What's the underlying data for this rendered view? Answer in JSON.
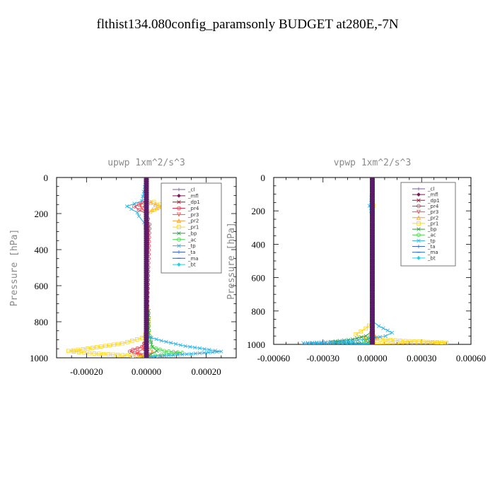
{
  "figure": {
    "title": "flthist134.080config_paramsonly  BUDGET at280E,-7N"
  },
  "chart_data": [
    {
      "type": "line",
      "title": "upwp   1xm^2/s^3",
      "ylabel": "Pressure  [hPa]",
      "xlabel": "",
      "xlim": [
        -0.0003,
        0.0003
      ],
      "ylim": [
        1000,
        0
      ],
      "xticks": [
        -0.0002,
        0.0,
        0.0002
      ],
      "xtick_labels": [
        "-0.00020",
        "0.00000",
        "0.00020"
      ],
      "yticks": [
        0,
        200,
        400,
        600,
        800,
        1000
      ],
      "ytick_labels": [
        "0",
        "200",
        "400",
        "600",
        "800",
        "1000"
      ],
      "legend_position": "top-right",
      "grid": false,
      "series": [
        {
          "name": "_cl",
          "color": "#7b5aa6",
          "marker": "+",
          "x": [
            0,
            0,
            0
          ],
          "y": [
            0,
            500,
            1000
          ]
        },
        {
          "name": "_mfl",
          "color": "#7b1a5a",
          "marker": "diamond",
          "x": [
            0,
            0,
            0
          ],
          "y": [
            0,
            500,
            1000
          ]
        },
        {
          "name": "_dp1",
          "color": "#a0142d",
          "marker": "x",
          "x": [
            0,
            0,
            0
          ],
          "y": [
            0,
            500,
            1000
          ]
        },
        {
          "name": "_pr4",
          "color": "#e2344a",
          "marker": "circle",
          "x": [
            0,
            0,
            -1e-05,
            -4e-05,
            -2.5e-05,
            0,
            1e-05,
            0,
            -1.5e-05,
            -4.5e-05,
            -5.5e-05,
            -4e-05,
            -1e-05,
            8e-06,
            0
          ],
          "y": [
            0,
            120,
            140,
            160,
            180,
            200,
            260,
            900,
            940,
            955,
            965,
            975,
            985,
            995,
            1000
          ]
        },
        {
          "name": "_pr3",
          "color": "#ff4a4a",
          "marker": "triangle-down",
          "x": [
            0,
            0,
            -2e-05,
            -1.5e-05,
            0,
            0,
            -1e-05,
            -3e-05,
            -2e-05,
            0
          ],
          "y": [
            0,
            130,
            150,
            170,
            200,
            900,
            950,
            970,
            985,
            1000
          ]
        },
        {
          "name": "_pr2",
          "color": "#ff9b2e",
          "marker": "triangle",
          "x": [
            0,
            0,
            3e-05,
            5e-05,
            2e-05,
            0,
            0,
            5e-06,
            2e-05,
            8e-06,
            0
          ],
          "y": [
            0,
            130,
            150,
            160,
            180,
            200,
            900,
            940,
            965,
            985,
            1000
          ]
        },
        {
          "name": "_pr1",
          "color": "#ffd21a",
          "marker": "square",
          "x": [
            0,
            0,
            2.5e-05,
            4.5e-05,
            4e-05,
            1.2e-05,
            0,
            0,
            8e-06,
            8e-06,
            -1.5e-05,
            -8e-05,
            -0.00018,
            -0.00026,
            -0.00019,
            -8e-05,
            -1.5e-05,
            0
          ],
          "y": [
            0,
            120,
            135,
            150,
            165,
            190,
            220,
            700,
            780,
            850,
            890,
            920,
            945,
            962,
            975,
            985,
            995,
            1000
          ]
        },
        {
          "name": "_bp",
          "color": "#2d9a3a",
          "marker": "x",
          "x": [
            0,
            0,
            8e-06,
            8e-06,
            2e-05,
            3.5e-05,
            1.5e-05,
            5e-06,
            0
          ],
          "y": [
            0,
            700,
            740,
            860,
            940,
            962,
            980,
            992,
            1000
          ]
        },
        {
          "name": "_ac",
          "color": "#46d246",
          "marker": "circle",
          "x": [
            0,
            0,
            8e-06,
            1.8e-05,
            6e-05,
            0.00012,
            5e-05,
            1e-05,
            0
          ],
          "y": [
            0,
            800,
            850,
            940,
            962,
            972,
            982,
            992,
            1000
          ]
        },
        {
          "name": "_tp",
          "color": "#2bb0e3",
          "marker": "x",
          "x": [
            0,
            -1.5e-05,
            -4e-05,
            -6.5e-05,
            -5e-05,
            -3e-05,
            -2.5e-05,
            -8e-06,
            0,
            0,
            5e-05,
            0.00013,
            0.00021,
            0.00025,
            0.00015,
            3e-05,
            0
          ],
          "y": [
            0,
            130,
            145,
            160,
            175,
            195,
            215,
            250,
            300,
            880,
            905,
            935,
            955,
            965,
            978,
            992,
            1000
          ]
        },
        {
          "name": "_ta",
          "color": "#3a5fd6",
          "marker": "+",
          "x": [
            0,
            0,
            -5e-06,
            0,
            0,
            5e-06,
            0
          ],
          "y": [
            0,
            140,
            160,
            190,
            900,
            960,
            1000
          ]
        },
        {
          "name": "_ma",
          "color": "#1a64b4",
          "marker": "dash",
          "x": [
            0,
            0,
            0
          ],
          "y": [
            0,
            500,
            1000
          ]
        },
        {
          "name": "_bt",
          "color": "#22d0e0",
          "marker": "diamond",
          "x": [
            0,
            0,
            0
          ],
          "y": [
            0,
            500,
            1000
          ]
        }
      ]
    },
    {
      "type": "line",
      "title": "vpwp   1xm^2/s^3",
      "ylabel": "Pressure  [hPa]",
      "xlabel": "",
      "xlim": [
        -0.0006,
        0.0006
      ],
      "ylim": [
        1000,
        0
      ],
      "xticks": [
        -0.0006,
        -0.0003,
        0.0,
        0.0003,
        0.0006
      ],
      "xtick_labels": [
        "-0.00060",
        "-0.00030",
        "0.00000",
        "0.00030",
        "0.00060"
      ],
      "yticks": [
        0,
        200,
        400,
        600,
        800,
        1000
      ],
      "ytick_labels": [
        "0",
        "200",
        "400",
        "600",
        "800",
        "1000"
      ],
      "legend_position": "top-right",
      "grid": false,
      "series": [
        {
          "name": "_cl",
          "color": "#7b5aa6",
          "marker": "+",
          "x": [
            0,
            0,
            0
          ],
          "y": [
            0,
            500,
            1000
          ]
        },
        {
          "name": "_mfl",
          "color": "#7b1a5a",
          "marker": "diamond",
          "x": [
            0,
            0,
            0
          ],
          "y": [
            0,
            500,
            1000
          ]
        },
        {
          "name": "_dp1",
          "color": "#a0142d",
          "marker": "x",
          "x": [
            0,
            0,
            0
          ],
          "y": [
            0,
            500,
            1000
          ]
        },
        {
          "name": "_pr4",
          "color": "#e2344a",
          "marker": "circle",
          "x": [
            0,
            0,
            -1e-05,
            -2.5e-05,
            -1e-05,
            0
          ],
          "y": [
            0,
            900,
            950,
            975,
            990,
            1000
          ]
        },
        {
          "name": "_pr3",
          "color": "#ff4a4a",
          "marker": "triangle-down",
          "x": [
            0,
            0,
            1e-05,
            0
          ],
          "y": [
            0,
            900,
            960,
            1000
          ]
        },
        {
          "name": "_pr2",
          "color": "#ff9b2e",
          "marker": "triangle",
          "x": [
            0,
            0,
            1e-05,
            3e-05,
            1e-05,
            0
          ],
          "y": [
            0,
            900,
            940,
            960,
            985,
            1000
          ]
        },
        {
          "name": "_pr1",
          "color": "#ffd21a",
          "marker": "square",
          "x": [
            0,
            0,
            8e-06,
            0,
            0,
            -4e-05,
            -0.0001,
            -6e-05,
            5e-05,
            0.0002,
            0.00045,
            0.0002,
            3e-05,
            0
          ],
          "y": [
            0,
            140,
            170,
            220,
            870,
            905,
            940,
            960,
            970,
            980,
            990,
            995,
            998,
            1000
          ]
        },
        {
          "name": "_bp",
          "color": "#2d9a3a",
          "marker": "x",
          "x": [
            0,
            0,
            -4e-05,
            -0.00012,
            -0.00025,
            -9e-05,
            -1e-05,
            0
          ],
          "y": [
            0,
            920,
            950,
            970,
            985,
            993,
            997,
            1000
          ]
        },
        {
          "name": "_ac",
          "color": "#46d246",
          "marker": "circle",
          "x": [
            0,
            0,
            -2e-05,
            -5e-05,
            -2e-05,
            0
          ],
          "y": [
            0,
            940,
            965,
            980,
            992,
            1000
          ]
        },
        {
          "name": "_tp",
          "color": "#2bb0e3",
          "marker": "x",
          "x": [
            0,
            -8e-06,
            -1.8e-05,
            -8e-06,
            0,
            0,
            4e-05,
            0.00012,
            8e-05,
            -2e-05,
            -0.00012,
            -0.00042,
            -0.0001,
            0
          ],
          "y": [
            0,
            150,
            170,
            200,
            230,
            860,
            890,
            930,
            950,
            965,
            980,
            992,
            997,
            1000
          ]
        },
        {
          "name": "_ta",
          "color": "#3a5fd6",
          "marker": "+",
          "x": [
            0,
            0,
            1e-05,
            0
          ],
          "y": [
            0,
            900,
            960,
            1000
          ]
        },
        {
          "name": "_ma",
          "color": "#1a64b4",
          "marker": "dash",
          "x": [
            0,
            0,
            0
          ],
          "y": [
            0,
            500,
            1000
          ]
        },
        {
          "name": "_bt",
          "color": "#22d0e0",
          "marker": "diamond",
          "x": [
            0,
            0,
            0
          ],
          "y": [
            0,
            500,
            1000
          ]
        }
      ]
    }
  ]
}
